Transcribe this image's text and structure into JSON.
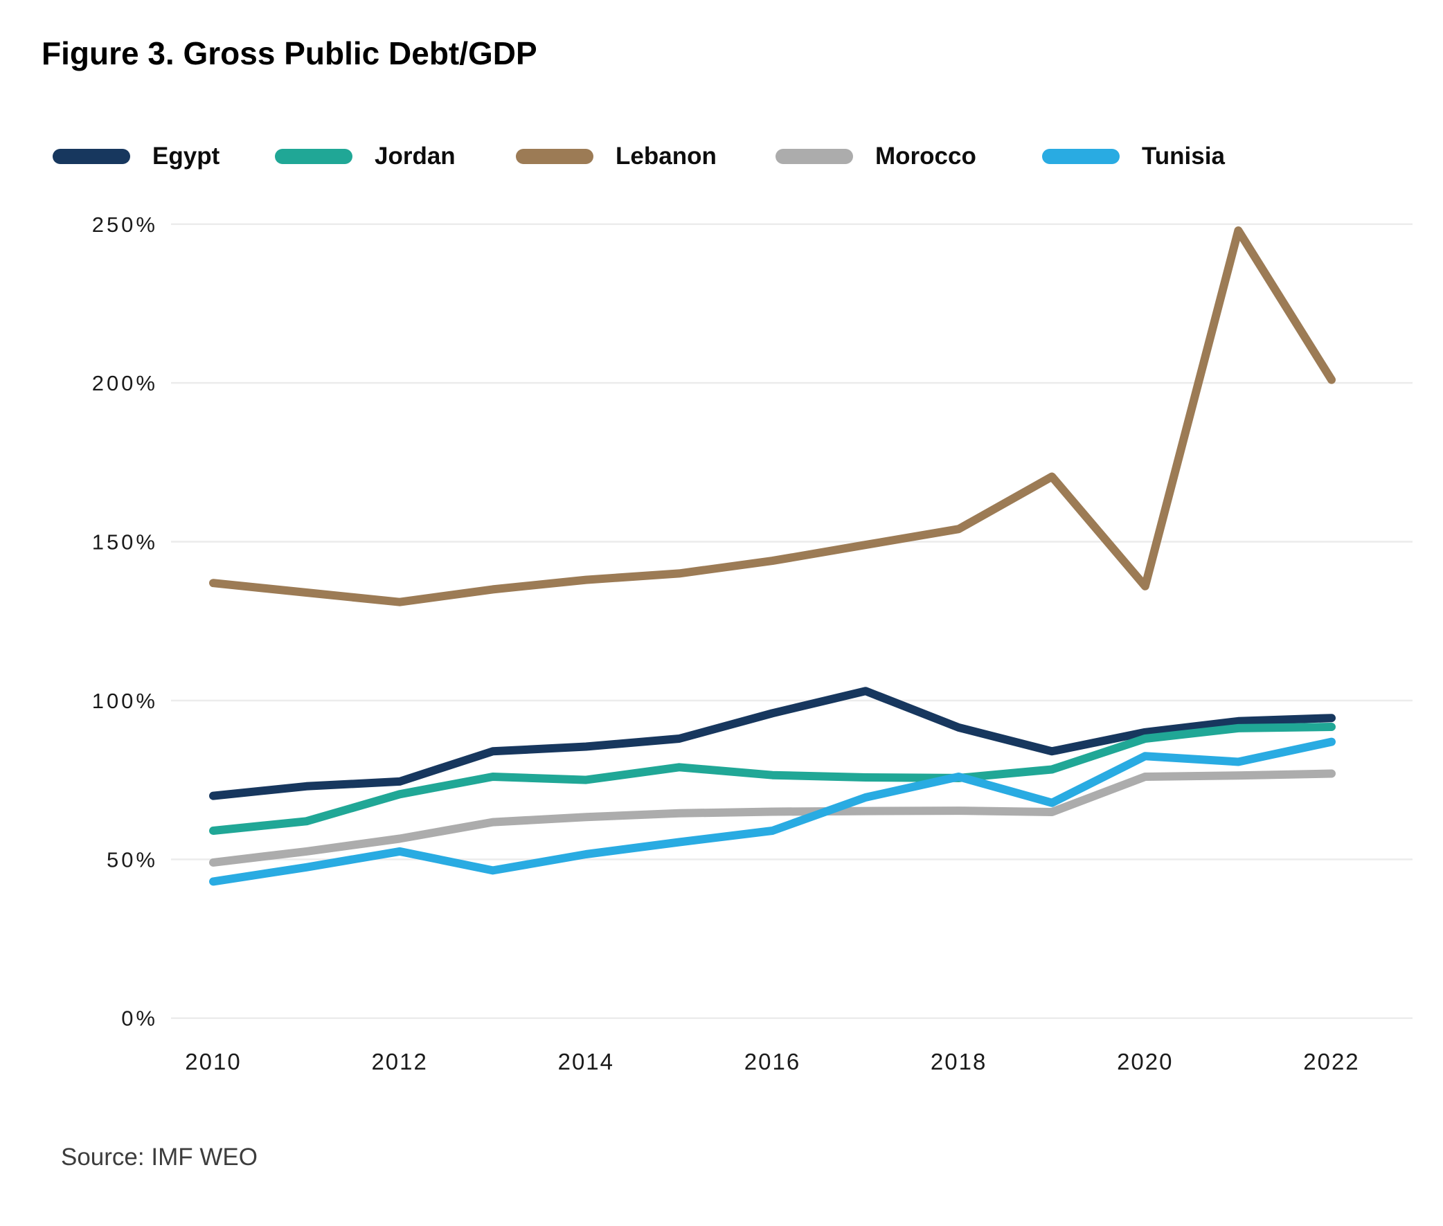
{
  "title": "Figure 3. Gross Public Debt/GDP",
  "source": "Source: IMF WEO",
  "chart_data": {
    "type": "line",
    "x": [
      2010,
      2011,
      2012,
      2013,
      2014,
      2015,
      2016,
      2017,
      2018,
      2019,
      2020,
      2021,
      2022
    ],
    "series": [
      {
        "name": "Egypt",
        "color": "#17375e",
        "values": [
          70,
          73,
          74.5,
          84,
          85.5,
          88,
          96,
          103,
          91.5,
          84,
          90,
          93.5,
          94.5
        ]
      },
      {
        "name": "Jordan",
        "color": "#20a796",
        "values": [
          59,
          62,
          70.5,
          76,
          75,
          79,
          76.5,
          75.8,
          75.6,
          78.3,
          88,
          91.3,
          91.7
        ]
      },
      {
        "name": "Lebanon",
        "color": "#9c7b55",
        "values": [
          137,
          134,
          131,
          135,
          138,
          140,
          144,
          149,
          154,
          170.5,
          136,
          248,
          201
        ]
      },
      {
        "name": "Morocco",
        "color": "#acacac",
        "values": [
          49,
          52.5,
          56.5,
          61.7,
          63.3,
          64.5,
          65,
          65.2,
          65.3,
          64.9,
          76,
          76.4,
          77
        ]
      },
      {
        "name": "Tunisia",
        "color": "#29abe2",
        "values": [
          43,
          47.5,
          52.5,
          46.5,
          51.6,
          55.4,
          59,
          69.5,
          76,
          67.8,
          82.5,
          80.7,
          87
        ]
      }
    ],
    "yticks": [
      0,
      50,
      100,
      150,
      200,
      250
    ],
    "ytick_labels": [
      "0%",
      "50%",
      "100%",
      "150%",
      "200%",
      "250%"
    ],
    "xticks": [
      2010,
      2012,
      2014,
      2016,
      2018,
      2020,
      2022
    ],
    "ylim": [
      0,
      250
    ],
    "xlim": [
      2010,
      2022
    ],
    "grid": "horizontal",
    "gridline_color": "#ececec",
    "legend_position": "top",
    "title": "Figure 3. Gross Public Debt/GDP",
    "xlabel": "",
    "ylabel": ""
  }
}
